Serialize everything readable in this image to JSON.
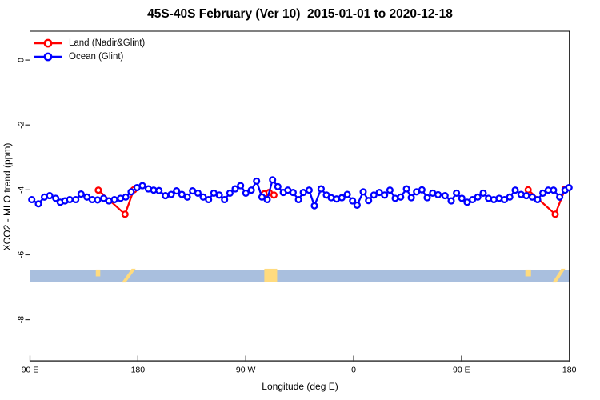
{
  "title": "45S-40S February (Ver 10)  2015-01-01 to 2020-12-18",
  "legend": {
    "items": [
      {
        "label": "Land (Nadir&Glint)",
        "color": "#ff0000"
      },
      {
        "label": "Ocean (Glint)",
        "color": "#0000ff"
      }
    ]
  },
  "chart_data": {
    "type": "line",
    "title": "45S-40S February (Ver 10)  2015-01-01 to 2020-12-18",
    "xlabel": "Longitude (deg E)",
    "ylabel": "XCO2 - MLO trend (ppm)",
    "grid": false,
    "legend_position": "top-left",
    "xlim": [
      90,
      540
    ],
    "ylim": [
      -9.28,
      0.89
    ],
    "x_ticks": [
      {
        "lon": 90,
        "label": "90 E"
      },
      {
        "lon": 180,
        "label": "180"
      },
      {
        "lon": 270,
        "label": "90 W"
      },
      {
        "lon": 360,
        "label": "0"
      },
      {
        "lon": 450,
        "label": "90 E"
      },
      {
        "lon": 540,
        "label": "180"
      }
    ],
    "y_ticks": [
      {
        "value": 0,
        "label": "0"
      },
      {
        "value": -2,
        "label": "-2"
      },
      {
        "value": -4,
        "label": "-4"
      },
      {
        "value": -6,
        "label": "-6"
      },
      {
        "value": -8,
        "label": "-8"
      }
    ],
    "series": [
      {
        "name": "Land (Nadir&Glint)",
        "color": "#ff0000",
        "marker": "open-circle",
        "segments": [
          [
            [
              147.0,
              -4.01
            ],
            [
              169.3,
              -4.75
            ],
            [
              176.6,
              -4.0
            ]
          ],
          [
            [
              285.5,
              -4.12
            ],
            [
              289.5,
              -4.08
            ],
            [
              293.5,
              -4.16
            ]
          ],
          [
            [
              505.6,
              -4.0
            ],
            [
              528.2,
              -4.75
            ],
            [
              536.4,
              -3.98
            ]
          ]
        ]
      },
      {
        "name": "Ocean (Glint)",
        "color": "#0000ff",
        "marker": "open-circle",
        "segments": [
          [
            [
              91.5,
              -4.3
            ],
            [
              97.0,
              -4.43
            ],
            [
              102.0,
              -4.22
            ],
            [
              106.4,
              -4.18
            ],
            [
              111.5,
              -4.26
            ],
            [
              115.2,
              -4.38
            ],
            [
              119.2,
              -4.34
            ],
            [
              123.2,
              -4.3
            ],
            [
              128.2,
              -4.3
            ],
            [
              132.6,
              -4.13
            ],
            [
              137.5,
              -4.22
            ],
            [
              141.9,
              -4.3
            ],
            [
              146.4,
              -4.31
            ],
            [
              151.5,
              -4.26
            ],
            [
              155.9,
              -4.34
            ],
            [
              160.4,
              -4.3
            ],
            [
              165.5,
              -4.26
            ],
            [
              169.9,
              -4.22
            ],
            [
              174.4,
              -4.06
            ],
            [
              179.3,
              -3.93
            ],
            [
              183.8,
              -3.87
            ],
            [
              188.7,
              -3.97
            ],
            [
              193.2,
              -4.01
            ],
            [
              197.6,
              -4.02
            ],
            [
              203.0,
              -4.18
            ],
            [
              207.8,
              -4.14
            ],
            [
              212.3,
              -4.03
            ],
            [
              216.7,
              -4.14
            ],
            [
              221.2,
              -4.22
            ],
            [
              225.6,
              -4.03
            ],
            [
              230.1,
              -4.1
            ],
            [
              234.5,
              -4.22
            ],
            [
              239.0,
              -4.3
            ],
            [
              243.4,
              -4.1
            ],
            [
              247.9,
              -4.16
            ],
            [
              252.3,
              -4.3
            ],
            [
              256.8,
              -4.1
            ],
            [
              261.2,
              -3.97
            ],
            [
              265.7,
              -3.87
            ],
            [
              270.1,
              -4.1
            ],
            [
              274.6,
              -4.01
            ],
            [
              279.0,
              -3.73
            ],
            [
              283.5,
              -4.22
            ],
            [
              287.9,
              -4.3
            ],
            [
              292.4,
              -3.69
            ],
            [
              296.8,
              -3.9
            ],
            [
              301.3,
              -4.08
            ],
            [
              305.1,
              -4.01
            ],
            [
              309.5,
              -4.08
            ],
            [
              314.0,
              -4.3
            ],
            [
              318.0,
              -4.08
            ],
            [
              322.9,
              -4.01
            ],
            [
              327.3,
              -4.49
            ],
            [
              332.9,
              -3.97
            ],
            [
              337.3,
              -4.16
            ],
            [
              341.3,
              -4.24
            ],
            [
              345.8,
              -4.28
            ],
            [
              350.2,
              -4.24
            ],
            [
              354.7,
              -4.14
            ],
            [
              359.1,
              -4.34
            ],
            [
              362.9,
              -4.47
            ],
            [
              368.0,
              -4.06
            ],
            [
              372.5,
              -4.33
            ],
            [
              376.9,
              -4.16
            ],
            [
              381.4,
              -4.08
            ],
            [
              385.8,
              -4.16
            ],
            [
              390.3,
              -4.01
            ],
            [
              394.7,
              -4.26
            ],
            [
              399.2,
              -4.22
            ],
            [
              404.1,
              -3.97
            ],
            [
              408.1,
              -4.24
            ],
            [
              412.5,
              -4.06
            ],
            [
              417.0,
              -4.0
            ],
            [
              421.4,
              -4.24
            ],
            [
              425.9,
              -4.1
            ],
            [
              430.5,
              -4.15
            ],
            [
              436.3,
              -4.18
            ],
            [
              441.4,
              -4.34
            ],
            [
              445.8,
              -4.1
            ],
            [
              450.3,
              -4.26
            ],
            [
              454.7,
              -4.38
            ],
            [
              459.2,
              -4.3
            ],
            [
              463.6,
              -4.22
            ],
            [
              468.1,
              -4.1
            ],
            [
              472.5,
              -4.26
            ],
            [
              477.0,
              -4.3
            ],
            [
              481.4,
              -4.26
            ],
            [
              485.9,
              -4.3
            ],
            [
              490.3,
              -4.22
            ],
            [
              494.8,
              -4.01
            ],
            [
              499.7,
              -4.14
            ],
            [
              504.1,
              -4.18
            ],
            [
              509.0,
              -4.22
            ],
            [
              513.5,
              -4.3
            ],
            [
              517.9,
              -4.1
            ],
            [
              522.4,
              -4.01
            ],
            [
              526.8,
              -4.01
            ],
            [
              531.9,
              -4.22
            ],
            [
              536.4,
              -4.01
            ],
            [
              539.7,
              -3.93
            ]
          ]
        ]
      }
    ],
    "map_band": {
      "description": "ocean/land strip for latitude band 45S-40S",
      "ocean_color": "#a9bfde",
      "land_color": "#ffdb7e",
      "value_top": -6.48,
      "value_bottom": -6.83,
      "land_patches": [
        {
          "lon_start": 144.9,
          "lon_end": 148.6,
          "shape": "rect-top"
        },
        {
          "lon_start": 166.5,
          "lon_end": 178.2,
          "shape": "slant"
        },
        {
          "lon_start": 285.5,
          "lon_end": 296.2,
          "shape": "rect"
        },
        {
          "lon_start": 503.3,
          "lon_end": 508.0,
          "shape": "rect-top"
        },
        {
          "lon_start": 525.8,
          "lon_end": 536.6,
          "shape": "slant"
        }
      ]
    },
    "axis_colors": {
      "box": "#000000",
      "bottom_axis": "#555555",
      "text": "#000000"
    }
  }
}
